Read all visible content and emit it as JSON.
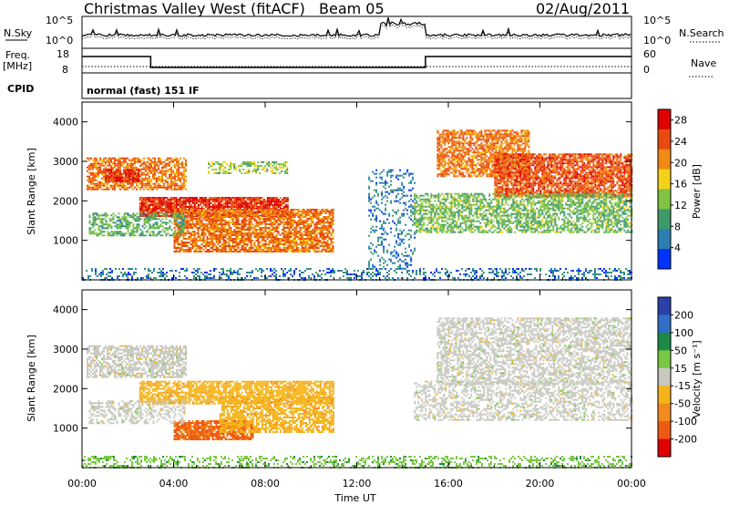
{
  "header": {
    "station": "Christmas Valley West (fitACF)",
    "beam": "Beam 05",
    "date": "02/Aug/2011"
  },
  "status_panels": {
    "nsky": {
      "label": "N.Sky",
      "right_label": "N.Search",
      "left_ticks": [
        "10^5",
        "10^0"
      ],
      "right_ticks": [
        "10^5",
        "10^0"
      ]
    },
    "freq": {
      "label_line1": "Freq.",
      "label_line2": "[MHz]",
      "right_label": "Nave",
      "left_ticks": [
        "18",
        "8"
      ],
      "right_ticks": [
        "60",
        "0"
      ]
    },
    "cpid": {
      "label": "CPID",
      "text": "normal (fast) 151 IF"
    }
  },
  "x_axis": {
    "label": "Time UT",
    "tick_labels": [
      "00:00",
      "04:00",
      "08:00",
      "12:00",
      "16:00",
      "20:00",
      "00:00"
    ]
  },
  "colors": {
    "power": [
      "#0033ff",
      "#2a7fb0",
      "#3f9a6a",
      "#7fc342",
      "#f5d21a",
      "#f08a14",
      "#e84a10",
      "#e00000"
    ],
    "velocity": [
      "#2a3fa8",
      "#2f6fc7",
      "#1c8a46",
      "#79c843",
      "#c8c8c0",
      "#f5b41a",
      "#f28c1e",
      "#ee5a14",
      "#e00000"
    ]
  },
  "chart_data": [
    {
      "type": "heatmap",
      "title": "",
      "ylabel": "Slant Range [km]",
      "xlabel": "",
      "x_range_hours": [
        0,
        24
      ],
      "ylim": [
        0,
        4500
      ],
      "y_ticks": [
        1000,
        2000,
        3000,
        4000
      ],
      "colorbar": {
        "label": "Power [dB]",
        "ticks": [
          4,
          8,
          12,
          16,
          20,
          24,
          28
        ],
        "range": [
          0,
          30
        ]
      },
      "regions": [
        {
          "t": [
            0.2,
            4.5
          ],
          "r": [
            2300,
            3100
          ],
          "value": 22,
          "density": 0.75
        },
        {
          "t": [
            1.0,
            2.5
          ],
          "r": [
            2500,
            2800
          ],
          "value": 26,
          "density": 0.85
        },
        {
          "t": [
            2.5,
            9.0
          ],
          "r": [
            1600,
            2100
          ],
          "value": 26,
          "density": 0.9
        },
        {
          "t": [
            4.0,
            11.0
          ],
          "r": [
            700,
            1800
          ],
          "value": 22,
          "density": 0.8
        },
        {
          "t": [
            0.3,
            4.5
          ],
          "r": [
            1100,
            1700
          ],
          "value": 11,
          "density": 0.55
        },
        {
          "t": [
            5.5,
            9.0
          ],
          "r": [
            2700,
            3000
          ],
          "value": 14,
          "density": 0.5
        },
        {
          "t": [
            12.5,
            14.5
          ],
          "r": [
            300,
            2800
          ],
          "value": 6,
          "density": 0.25
        },
        {
          "t": [
            15.5,
            19.5
          ],
          "r": [
            2600,
            3800
          ],
          "value": 22,
          "density": 0.75
        },
        {
          "t": [
            18.0,
            24.0
          ],
          "r": [
            2100,
            3200
          ],
          "value": 24,
          "density": 0.85
        },
        {
          "t": [
            14.5,
            24.0
          ],
          "r": [
            1200,
            2200
          ],
          "value": 12,
          "density": 0.65
        },
        {
          "t": [
            0.0,
            24.0
          ],
          "r": [
            0,
            300
          ],
          "value": 6,
          "density": 0.35
        }
      ]
    },
    {
      "type": "heatmap",
      "title": "",
      "ylabel": "Slant Range [km]",
      "xlabel": "Time UT",
      "x_range_hours": [
        0,
        24
      ],
      "ylim": [
        0,
        4500
      ],
      "y_ticks": [
        1000,
        2000,
        3000,
        4000
      ],
      "colorbar": {
        "label": "Velocity [m s⁻¹]",
        "ticks": [
          200,
          100,
          50,
          15,
          -15,
          -50,
          -100,
          -200
        ],
        "range": [
          -250,
          250
        ]
      },
      "regions": [
        {
          "t": [
            0.2,
            4.5
          ],
          "r": [
            2300,
            3100
          ],
          "value": 0,
          "density": 0.7
        },
        {
          "t": [
            2.5,
            11.0
          ],
          "r": [
            1600,
            2200
          ],
          "value": -60,
          "density": 0.75
        },
        {
          "t": [
            4.0,
            7.5
          ],
          "r": [
            700,
            1200
          ],
          "value": -150,
          "density": 0.85
        },
        {
          "t": [
            6.0,
            11.0
          ],
          "r": [
            900,
            1800
          ],
          "value": -60,
          "density": 0.7
        },
        {
          "t": [
            0.3,
            4.5
          ],
          "r": [
            1100,
            1700
          ],
          "value": 0,
          "density": 0.45
        },
        {
          "t": [
            15.5,
            24.0
          ],
          "r": [
            2100,
            3800
          ],
          "value": 0,
          "density": 0.6
        },
        {
          "t": [
            14.5,
            24.0
          ],
          "r": [
            1200,
            2200
          ],
          "value": 0,
          "density": 0.5
        },
        {
          "t": [
            0.0,
            24.0
          ],
          "r": [
            0,
            300
          ],
          "value": 60,
          "density": 0.35
        }
      ]
    }
  ]
}
